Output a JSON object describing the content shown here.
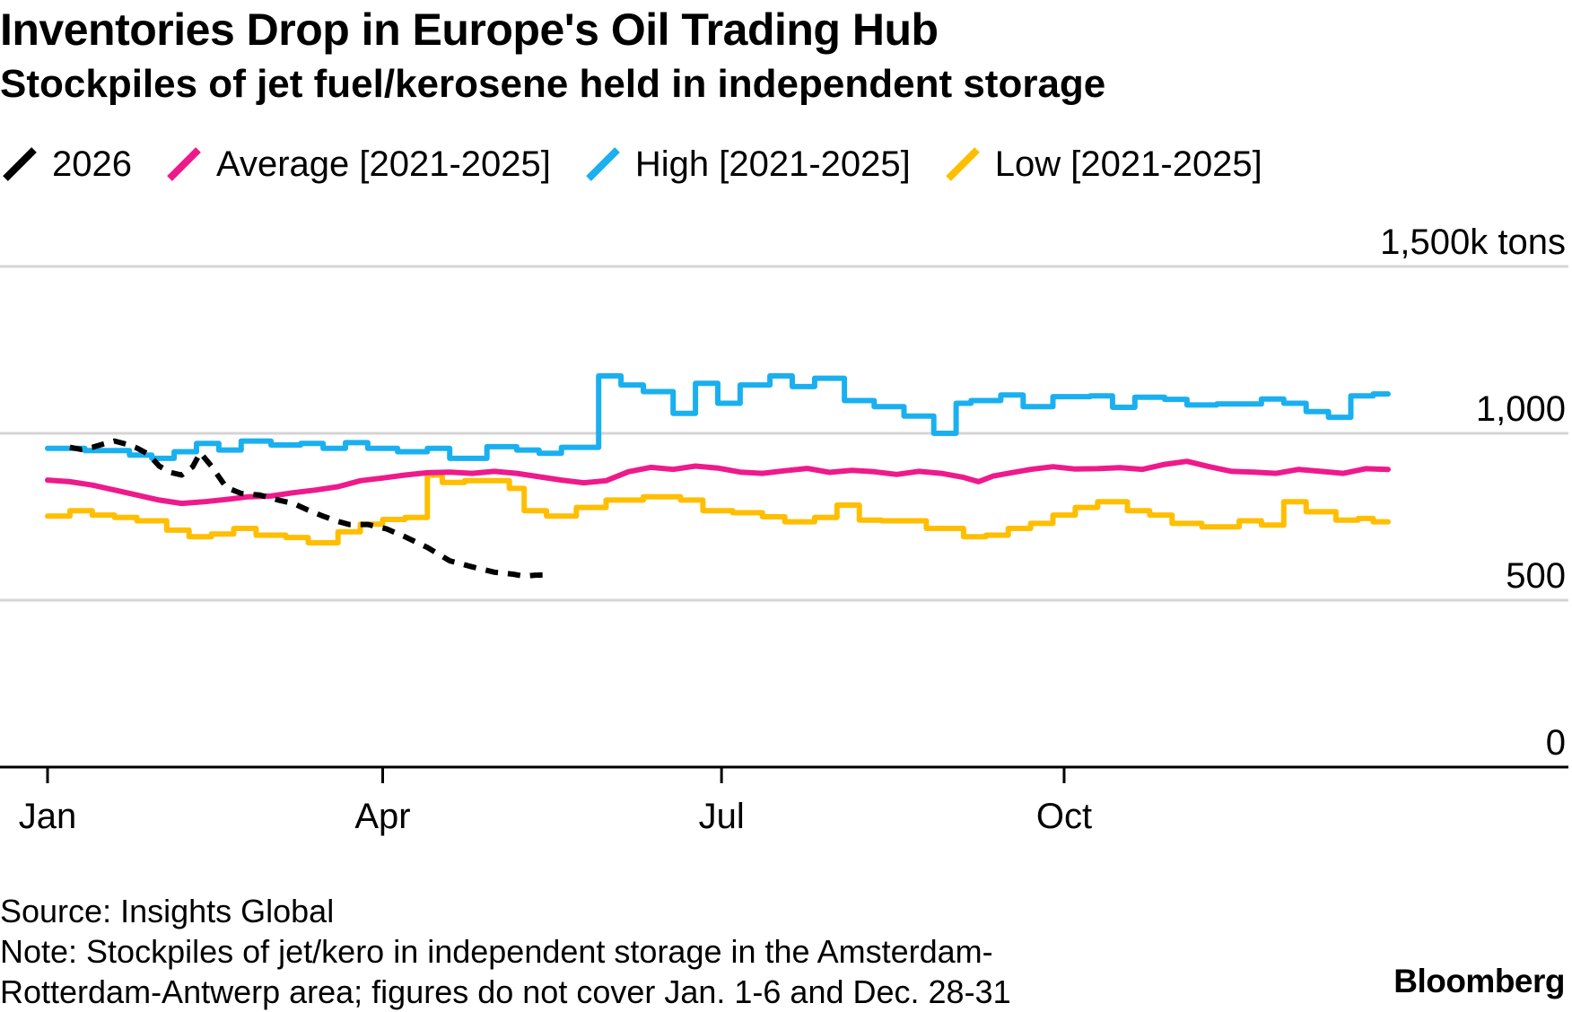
{
  "chart_data": {
    "type": "line",
    "title": "Inventories Drop in Europe's Oil Trading Hub",
    "subtitle": "Stockpiles of jet fuel/kerosene held in independent storage",
    "ylabel": "",
    "unit": "k tons",
    "ylim": [
      0,
      1500
    ],
    "yticks": [
      {
        "value": 0,
        "label": "0"
      },
      {
        "value": 500,
        "label": "500"
      },
      {
        "value": 1000,
        "label": "1,000"
      },
      {
        "value": 1500,
        "label": "1,500k tons"
      }
    ],
    "xlim": [
      "Jan 1",
      "Dec 31"
    ],
    "xticks": [
      {
        "day": 0,
        "label": "Jan"
      },
      {
        "day": 90,
        "label": "Apr"
      },
      {
        "day": 181,
        "label": "Jul"
      },
      {
        "day": 273,
        "label": "Oct"
      }
    ],
    "grid": true,
    "legend_position": "top-left",
    "series": [
      {
        "name": "2026",
        "color": "#000000",
        "dash": true,
        "points": [
          [
            6,
            958
          ],
          [
            9,
            952
          ],
          [
            12,
            958
          ],
          [
            15,
            968
          ],
          [
            18,
            977
          ],
          [
            21,
            968
          ],
          [
            24,
            956
          ],
          [
            27,
            938
          ],
          [
            30,
            902
          ],
          [
            33,
            883
          ],
          [
            36,
            875
          ],
          [
            39,
            900
          ],
          [
            41,
            942
          ],
          [
            44,
            902
          ],
          [
            48,
            838
          ],
          [
            52,
            820
          ],
          [
            57,
            815
          ],
          [
            62,
            800
          ],
          [
            66,
            790
          ],
          [
            70,
            770
          ],
          [
            74,
            752
          ],
          [
            78,
            736
          ],
          [
            81,
            727
          ],
          [
            86,
            727
          ],
          [
            91,
            714
          ],
          [
            96,
            690
          ],
          [
            102,
            658
          ],
          [
            108,
            618
          ],
          [
            114,
            600
          ],
          [
            120,
            584
          ],
          [
            125,
            578
          ],
          [
            128,
            572
          ],
          [
            131,
            575
          ],
          [
            135,
            576
          ]
        ]
      },
      {
        "name": "Average [2021-2025]",
        "color": "#ee1a8c",
        "dash": false,
        "points": [
          [
            0,
            860
          ],
          [
            6,
            855
          ],
          [
            12,
            845
          ],
          [
            18,
            830
          ],
          [
            24,
            815
          ],
          [
            30,
            800
          ],
          [
            36,
            790
          ],
          [
            42,
            795
          ],
          [
            48,
            802
          ],
          [
            54,
            810
          ],
          [
            60,
            812
          ],
          [
            66,
            822
          ],
          [
            72,
            830
          ],
          [
            78,
            840
          ],
          [
            84,
            858
          ],
          [
            90,
            866
          ],
          [
            96,
            875
          ],
          [
            102,
            882
          ],
          [
            108,
            884
          ],
          [
            114,
            880
          ],
          [
            120,
            886
          ],
          [
            126,
            880
          ],
          [
            132,
            870
          ],
          [
            138,
            860
          ],
          [
            144,
            852
          ],
          [
            150,
            858
          ],
          [
            156,
            885
          ],
          [
            162,
            898
          ],
          [
            168,
            892
          ],
          [
            174,
            902
          ],
          [
            180,
            896
          ],
          [
            186,
            884
          ],
          [
            192,
            880
          ],
          [
            198,
            888
          ],
          [
            204,
            895
          ],
          [
            210,
            883
          ],
          [
            216,
            889
          ],
          [
            222,
            885
          ],
          [
            228,
            877
          ],
          [
            234,
            886
          ],
          [
            240,
            880
          ],
          [
            246,
            868
          ],
          [
            250,
            855
          ],
          [
            254,
            872
          ],
          [
            258,
            880
          ],
          [
            264,
            892
          ],
          [
            270,
            900
          ],
          [
            276,
            893
          ],
          [
            282,
            894
          ],
          [
            288,
            897
          ],
          [
            294,
            892
          ],
          [
            300,
            907
          ],
          [
            306,
            916
          ],
          [
            312,
            900
          ],
          [
            318,
            886
          ],
          [
            324,
            884
          ],
          [
            330,
            880
          ],
          [
            336,
            892
          ],
          [
            342,
            886
          ],
          [
            348,
            880
          ],
          [
            354,
            894
          ],
          [
            360,
            892
          ]
        ]
      },
      {
        "name": "High [2021-2025]",
        "color": "#1ab0ef",
        "dash": false,
        "points": [
          [
            0,
            955
          ],
          [
            10,
            955
          ],
          [
            10,
            948
          ],
          [
            22,
            948
          ],
          [
            22,
            935
          ],
          [
            28,
            935
          ],
          [
            28,
            925
          ],
          [
            34,
            925
          ],
          [
            34,
            945
          ],
          [
            40,
            945
          ],
          [
            40,
            970
          ],
          [
            46,
            970
          ],
          [
            46,
            950
          ],
          [
            52,
            950
          ],
          [
            52,
            977
          ],
          [
            60,
            977
          ],
          [
            60,
            965
          ],
          [
            68,
            965
          ],
          [
            68,
            970
          ],
          [
            74,
            970
          ],
          [
            74,
            955
          ],
          [
            80,
            955
          ],
          [
            80,
            972
          ],
          [
            86,
            972
          ],
          [
            86,
            955
          ],
          [
            94,
            955
          ],
          [
            94,
            945
          ],
          [
            102,
            945
          ],
          [
            102,
            955
          ],
          [
            108,
            955
          ],
          [
            108,
            925
          ],
          [
            118,
            925
          ],
          [
            118,
            960
          ],
          [
            126,
            960
          ],
          [
            126,
            950
          ],
          [
            132,
            950
          ],
          [
            132,
            940
          ],
          [
            138,
            940
          ],
          [
            138,
            958
          ],
          [
            148,
            958
          ],
          [
            148,
            1172
          ],
          [
            154,
            1172
          ],
          [
            154,
            1145
          ],
          [
            160,
            1145
          ],
          [
            160,
            1125
          ],
          [
            168,
            1125
          ],
          [
            168,
            1060
          ],
          [
            174,
            1060
          ],
          [
            174,
            1150
          ],
          [
            180,
            1150
          ],
          [
            180,
            1090
          ],
          [
            186,
            1090
          ],
          [
            186,
            1145
          ],
          [
            194,
            1145
          ],
          [
            194,
            1172
          ],
          [
            200,
            1172
          ],
          [
            200,
            1140
          ],
          [
            206,
            1140
          ],
          [
            206,
            1165
          ],
          [
            214,
            1165
          ],
          [
            214,
            1098
          ],
          [
            222,
            1098
          ],
          [
            222,
            1080
          ],
          [
            230,
            1080
          ],
          [
            230,
            1052
          ],
          [
            238,
            1052
          ],
          [
            238,
            1000
          ],
          [
            244,
            1000
          ],
          [
            244,
            1090
          ],
          [
            248,
            1090
          ],
          [
            248,
            1098
          ],
          [
            256,
            1098
          ],
          [
            256,
            1115
          ],
          [
            262,
            1115
          ],
          [
            262,
            1080
          ],
          [
            270,
            1080
          ],
          [
            270,
            1110
          ],
          [
            280,
            1110
          ],
          [
            280,
            1112
          ],
          [
            286,
            1112
          ],
          [
            286,
            1078
          ],
          [
            292,
            1078
          ],
          [
            292,
            1108
          ],
          [
            300,
            1108
          ],
          [
            300,
            1102
          ],
          [
            306,
            1102
          ],
          [
            306,
            1085
          ],
          [
            314,
            1085
          ],
          [
            314,
            1088
          ],
          [
            326,
            1088
          ],
          [
            326,
            1103
          ],
          [
            332,
            1103
          ],
          [
            332,
            1090
          ],
          [
            338,
            1090
          ],
          [
            338,
            1065
          ],
          [
            344,
            1065
          ],
          [
            344,
            1048
          ],
          [
            350,
            1048
          ],
          [
            350,
            1112
          ],
          [
            356,
            1112
          ],
          [
            356,
            1118
          ],
          [
            360,
            1118
          ]
        ]
      },
      {
        "name": "Low [2021-2025]",
        "color": "#ffbe00",
        "dash": false,
        "points": [
          [
            0,
            752
          ],
          [
            6,
            752
          ],
          [
            6,
            768
          ],
          [
            12,
            768
          ],
          [
            12,
            755
          ],
          [
            18,
            755
          ],
          [
            18,
            748
          ],
          [
            24,
            748
          ],
          [
            24,
            738
          ],
          [
            32,
            738
          ],
          [
            32,
            710
          ],
          [
            38,
            710
          ],
          [
            38,
            690
          ],
          [
            44,
            690
          ],
          [
            44,
            698
          ],
          [
            50,
            698
          ],
          [
            50,
            715
          ],
          [
            56,
            715
          ],
          [
            56,
            695
          ],
          [
            64,
            695
          ],
          [
            64,
            688
          ],
          [
            70,
            688
          ],
          [
            70,
            672
          ],
          [
            78,
            672
          ],
          [
            78,
            705
          ],
          [
            84,
            705
          ],
          [
            84,
            728
          ],
          [
            90,
            728
          ],
          [
            90,
            742
          ],
          [
            96,
            742
          ],
          [
            96,
            748
          ],
          [
            102,
            748
          ],
          [
            102,
            875
          ],
          [
            106,
            875
          ],
          [
            106,
            853
          ],
          [
            112,
            853
          ],
          [
            112,
            858
          ],
          [
            124,
            858
          ],
          [
            124,
            835
          ],
          [
            128,
            835
          ],
          [
            128,
            768
          ],
          [
            134,
            768
          ],
          [
            134,
            752
          ],
          [
            142,
            752
          ],
          [
            142,
            778
          ],
          [
            150,
            778
          ],
          [
            150,
            800
          ],
          [
            160,
            800
          ],
          [
            160,
            810
          ],
          [
            170,
            810
          ],
          [
            170,
            800
          ],
          [
            176,
            800
          ],
          [
            176,
            768
          ],
          [
            184,
            768
          ],
          [
            184,
            762
          ],
          [
            192,
            762
          ],
          [
            192,
            750
          ],
          [
            198,
            750
          ],
          [
            198,
            735
          ],
          [
            206,
            735
          ],
          [
            206,
            748
          ],
          [
            212,
            748
          ],
          [
            212,
            785
          ],
          [
            218,
            785
          ],
          [
            218,
            740
          ],
          [
            224,
            740
          ],
          [
            224,
            738
          ],
          [
            236,
            738
          ],
          [
            236,
            715
          ],
          [
            246,
            715
          ],
          [
            246,
            690
          ],
          [
            252,
            690
          ],
          [
            252,
            695
          ],
          [
            258,
            695
          ],
          [
            258,
            715
          ],
          [
            264,
            715
          ],
          [
            264,
            730
          ],
          [
            270,
            730
          ],
          [
            270,
            755
          ],
          [
            276,
            755
          ],
          [
            276,
            778
          ],
          [
            282,
            778
          ],
          [
            282,
            795
          ],
          [
            290,
            795
          ],
          [
            290,
            768
          ],
          [
            296,
            768
          ],
          [
            296,
            755
          ],
          [
            302,
            755
          ],
          [
            302,
            730
          ],
          [
            310,
            730
          ],
          [
            310,
            720
          ],
          [
            320,
            720
          ],
          [
            320,
            738
          ],
          [
            326,
            738
          ],
          [
            326,
            725
          ],
          [
            332,
            725
          ],
          [
            332,
            795
          ],
          [
            338,
            795
          ],
          [
            338,
            765
          ],
          [
            346,
            765
          ],
          [
            346,
            740
          ],
          [
            352,
            740
          ],
          [
            352,
            745
          ],
          [
            356,
            745
          ],
          [
            356,
            735
          ],
          [
            360,
            735
          ]
        ]
      }
    ]
  },
  "footer": {
    "source": "Source: Insights Global",
    "note_line1": "Note: Stockpiles of jet/kero in independent storage in the Amsterdam-",
    "note_line2": "Rotterdam-Antwerp area; figures do not cover Jan. 1-6 and Dec. 28-31"
  },
  "brand": "Bloomberg"
}
